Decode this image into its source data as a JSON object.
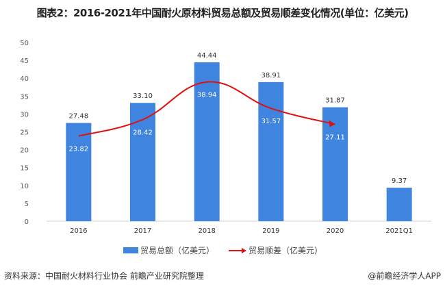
{
  "chart_data": {
    "type": "bar+line",
    "title": "图表2：2016-2021年中国耐火原材料贸易总额及贸易顺差变化情况(单位：亿美元)",
    "categories": [
      "2016",
      "2017",
      "2018",
      "2019",
      "2020",
      "2021Q1"
    ],
    "series": [
      {
        "name": "贸易总额（亿美元）",
        "type": "bar",
        "color": "#3f85e0",
        "values": [
          27.48,
          33.1,
          44.44,
          38.91,
          31.87,
          9.37
        ]
      },
      {
        "name": "贸易顺差（亿美元）",
        "type": "line",
        "color": "#e01010",
        "values": [
          23.82,
          28.42,
          38.94,
          31.57,
          27.11,
          null
        ]
      }
    ],
    "ylim": [
      0,
      50
    ],
    "yticks": [
      0,
      5,
      10,
      15,
      20,
      25,
      30,
      35,
      40,
      45,
      50
    ],
    "grid": false,
    "legend": "bottom"
  },
  "footer": {
    "source": "资料来源：中国耐火材料行业协会 前瞻产业研究院整理",
    "credit": "@前瞻经济学人APP"
  }
}
